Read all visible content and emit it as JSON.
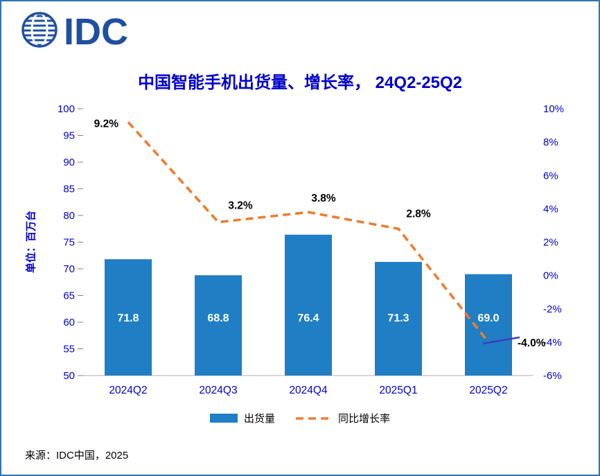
{
  "logo": {
    "text": "IDC"
  },
  "title": "中国智能手机出货量、增长率， 24Q2-25Q2",
  "left_axis_title": "单位：百万台",
  "source": "来源：IDC中国，2025",
  "legend": [
    {
      "label": "出货量",
      "type": "bar"
    },
    {
      "label": "同比增长率",
      "type": "line"
    }
  ],
  "colors": {
    "bar": "#1F7EC4",
    "line": "#ED7D31",
    "axis_text": "#0000CC",
    "bar_label": "#FFFFFF",
    "point_label": "#000000",
    "accent_segment": "#3B3BC4",
    "baseline": "#BFBFBF",
    "tick": "#808080",
    "border": "#2E74B5",
    "logo": "#1E4FA0"
  },
  "chart_data": {
    "type": "combo",
    "categories": [
      "2024Q2",
      "2024Q3",
      "2024Q4",
      "2025Q1",
      "2025Q2"
    ],
    "series": [
      {
        "name": "出货量",
        "type": "bar",
        "values": [
          71.8,
          68.8,
          76.4,
          71.3,
          69.0
        ],
        "labels": [
          "71.8",
          "68.8",
          "76.4",
          "71.3",
          "69.0"
        ]
      },
      {
        "name": "同比增长率",
        "type": "line",
        "values": [
          9.2,
          3.2,
          3.8,
          2.8,
          -4.0
        ],
        "labels": [
          "9.2%",
          "3.2%",
          "3.8%",
          "2.8%",
          "-4.0%"
        ]
      }
    ],
    "left_axis": {
      "min": 50,
      "max": 100,
      "step": 5,
      "ticks": [
        "50",
        "55",
        "60",
        "65",
        "70",
        "75",
        "80",
        "85",
        "90",
        "95",
        "100"
      ]
    },
    "right_axis": {
      "min": -6,
      "max": 10,
      "step": 2,
      "ticks": [
        "-6%",
        "-4%",
        "-2%",
        "0%",
        "2%",
        "4%",
        "6%",
        "8%",
        "10%"
      ]
    },
    "grid": false,
    "legend_position": "bottom"
  }
}
